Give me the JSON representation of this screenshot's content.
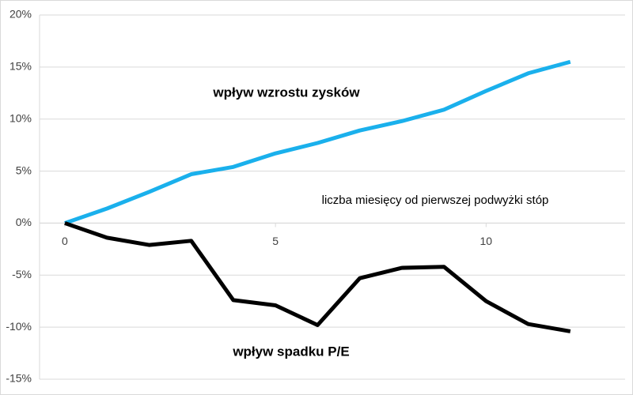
{
  "chart_data": {
    "type": "line",
    "x_label": "liczba miesięcy od pierwszej podwyżki stóp",
    "x": [
      0,
      1,
      2,
      3,
      4,
      5,
      6,
      7,
      8,
      9,
      10,
      11,
      12
    ],
    "series": [
      {
        "name": "wpływ wzrostu zysków",
        "color": "#1ab0ec",
        "values": [
          0,
          1.4,
          3.0,
          4.7,
          5.4,
          6.7,
          7.7,
          8.9,
          9.8,
          10.9,
          12.7,
          14.4,
          15.5
        ]
      },
      {
        "name": "wpływ spadku P/E",
        "color": "#000000",
        "values": [
          0,
          -1.4,
          -2.1,
          -1.7,
          -7.4,
          -7.9,
          -9.8,
          -5.3,
          -4.3,
          -4.2,
          -7.5,
          -9.7,
          -10.4
        ]
      }
    ],
    "xlim": [
      -0.6,
      13.3
    ],
    "xticks": [
      0,
      5,
      10
    ],
    "ylim": [
      -15,
      20
    ],
    "yticks": [
      {
        "value": -15,
        "label": "-15%"
      },
      {
        "value": -10,
        "label": "-10%"
      },
      {
        "value": -5,
        "label": "-5%"
      },
      {
        "value": 0,
        "label": "0%"
      },
      {
        "value": 5,
        "label": "5%"
      },
      {
        "value": 10,
        "label": "10%"
      },
      {
        "value": 15,
        "label": "15%"
      },
      {
        "value": 20,
        "label": "20%"
      }
    ],
    "grid": true
  }
}
